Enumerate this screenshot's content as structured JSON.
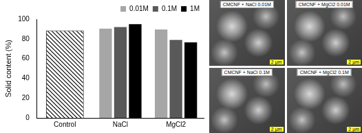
{
  "chart_data": {
    "type": "bar",
    "y_label": "Solid content (%)",
    "categories": [
      "Control",
      "NaCl",
      "MgCl2"
    ],
    "series": [
      {
        "color": "#000000",
        "marker": "hatch",
        "values": [
          88.5,
          null,
          null
        ]
      },
      {
        "name": "0.01M",
        "color": "#a6a6a6",
        "values": [
          null,
          90.5,
          89.5
        ]
      },
      {
        "name": "0.1M",
        "color": "#595959",
        "values": [
          null,
          92,
          79
        ]
      },
      {
        "name": "1M",
        "color": "#000000",
        "values": [
          null,
          95,
          76.5
        ]
      }
    ],
    "ylim": [
      0,
      100
    ],
    "yticks": [
      0,
      20,
      40,
      60,
      80,
      100
    ],
    "grid": false,
    "legend": "top"
  },
  "images": [
    {
      "label": "CMCNF + NaCl 0.01M",
      "scale_bar": "2 μm"
    },
    {
      "label": "CMCNF + MgCl2 0.01M",
      "scale_bar": "2 μm"
    },
    {
      "label": "CMCNF + NaCl 0.1M",
      "scale_bar": "2 μm"
    },
    {
      "label": "CMCNF + MgCl2 0.1M",
      "scale_bar": "2 μm"
    }
  ]
}
